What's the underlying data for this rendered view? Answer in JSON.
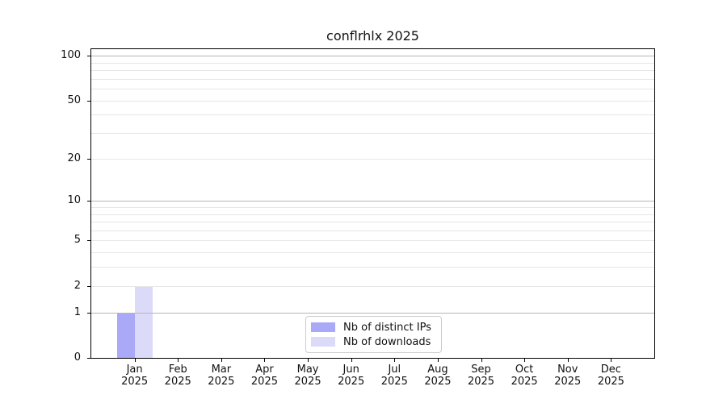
{
  "chart_data": {
    "type": "bar",
    "title": "conflrhlx 2025",
    "categories": [
      "Jan",
      "Feb",
      "Mar",
      "Apr",
      "May",
      "Jun",
      "Jul",
      "Aug",
      "Sep",
      "Oct",
      "Nov",
      "Dec"
    ],
    "x_tick_second_line": "2025",
    "series": [
      {
        "name": "Nb of distinct IPs",
        "color": "#a9a9f7",
        "values": [
          1,
          0,
          0,
          0,
          0,
          0,
          0,
          0,
          0,
          0,
          0,
          0
        ]
      },
      {
        "name": "Nb of downloads",
        "color": "#dbdbf9",
        "values": [
          2,
          0,
          0,
          0,
          0,
          0,
          0,
          0,
          0,
          0,
          0,
          0
        ]
      }
    ],
    "y_axis": {
      "scale": "log10(1+y)",
      "major_ticks": [
        0,
        1,
        2,
        5,
        10,
        20,
        50,
        100
      ],
      "minor_ticks": [
        3,
        4,
        6,
        7,
        8,
        9,
        30,
        40,
        60,
        70,
        80,
        90
      ],
      "emphasized_gridlines": [
        1,
        10,
        100
      ],
      "max_value": 110
    },
    "legend": {
      "position": "lower center",
      "entries": [
        "Nb of distinct IPs",
        "Nb of downloads"
      ]
    },
    "colors": {
      "major_grid": "#b5b5b5",
      "minor_grid": "#e6e6e6",
      "spine": "#000000",
      "text": "#111111",
      "background": "#ffffff"
    },
    "grid": true
  }
}
